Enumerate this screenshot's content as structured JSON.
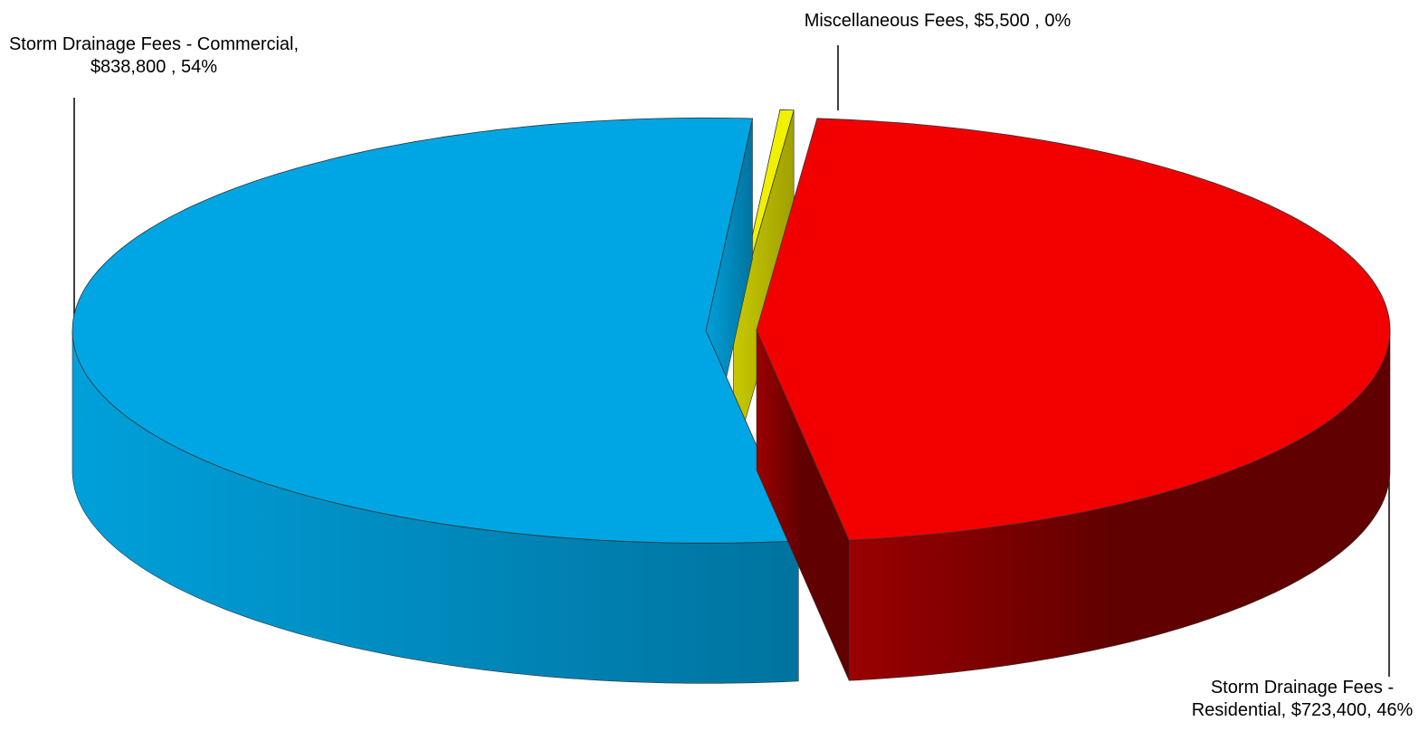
{
  "chart_data": {
    "type": "pie3d",
    "categories": [
      "Storm Drainage Fees - Commercial",
      "Miscellaneous Fees",
      "Storm Drainage Fees - Residential"
    ],
    "values": [
      838800,
      5500,
      723400
    ],
    "value_labels": [
      "Storm Drainage Fees - Commercial,  $838,800 , 54%",
      "Miscellaneous Fees,  $5,500 , 0%",
      "Storm Drainage Fees - Residential, $723,400, 46%"
    ],
    "colors": [
      "#00a6e4",
      "#f0f000",
      "#f20000"
    ]
  }
}
